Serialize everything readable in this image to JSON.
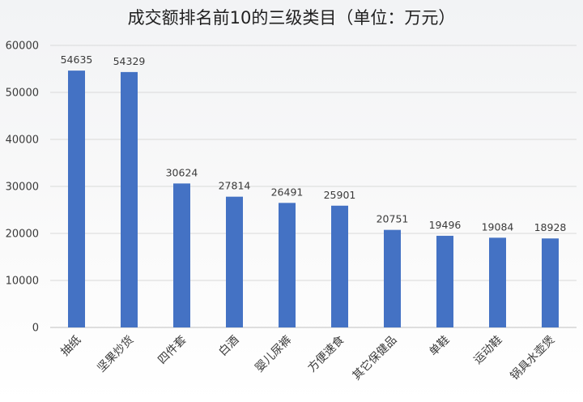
{
  "chart_data": {
    "type": "bar",
    "title": "成交额排名前10的三级类目（单位：万元）",
    "categories": [
      "抽纸",
      "坚果炒货",
      "四件套",
      "白酒",
      "婴儿尿裤",
      "方便速食",
      "其它保健品",
      "单鞋",
      "运动鞋",
      "锅具水壶煲"
    ],
    "series": [
      {
        "values": [
          54635,
          54329,
          30624,
          27814,
          26491,
          25901,
          20751,
          19496,
          19084,
          18928
        ]
      }
    ],
    "ylim": [
      0,
      60000
    ],
    "yticks": [
      0,
      10000,
      20000,
      30000,
      40000,
      50000,
      60000
    ],
    "grid": true,
    "bar_color": "#4472c4",
    "data_labels": true,
    "xlabel": "",
    "ylabel": ""
  }
}
